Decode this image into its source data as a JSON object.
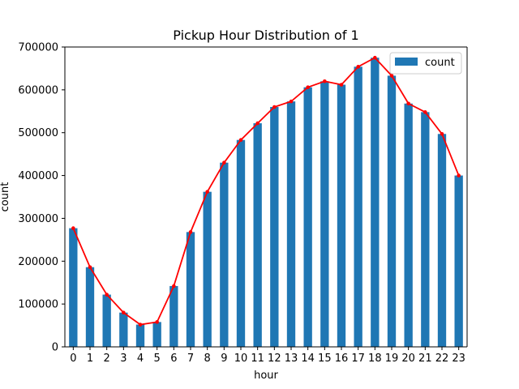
{
  "chart_data": {
    "type": "bar",
    "title": "Pickup Hour Distribution of 1",
    "xlabel": "hour",
    "ylabel": "count",
    "categories": [
      "0",
      "1",
      "2",
      "3",
      "4",
      "5",
      "6",
      "7",
      "8",
      "9",
      "10",
      "11",
      "12",
      "13",
      "14",
      "15",
      "16",
      "17",
      "18",
      "19",
      "20",
      "21",
      "22",
      "23"
    ],
    "series": [
      {
        "name": "count",
        "kind": "bar",
        "color": "#1f77b4",
        "values": [
          277000,
          186000,
          122000,
          80000,
          52000,
          58000,
          142000,
          268000,
          362000,
          430000,
          483000,
          522000,
          560000,
          573000,
          606000,
          620000,
          612000,
          654000,
          675000,
          633000,
          568000,
          548000,
          497000,
          400000
        ]
      },
      {
        "kind": "line",
        "color": "#ff0000",
        "values": [
          277000,
          186000,
          122000,
          80000,
          52000,
          58000,
          142000,
          268000,
          362000,
          430000,
          483000,
          522000,
          560000,
          573000,
          606000,
          620000,
          612000,
          654000,
          675000,
          633000,
          568000,
          548000,
          497000,
          400000
        ]
      }
    ],
    "ylim": [
      0,
      700000
    ],
    "yticks": [
      "0",
      "100000",
      "200000",
      "300000",
      "400000",
      "500000",
      "600000",
      "700000"
    ],
    "legend": {
      "position": "top-right",
      "entries": [
        "count"
      ]
    },
    "grid": false
  }
}
